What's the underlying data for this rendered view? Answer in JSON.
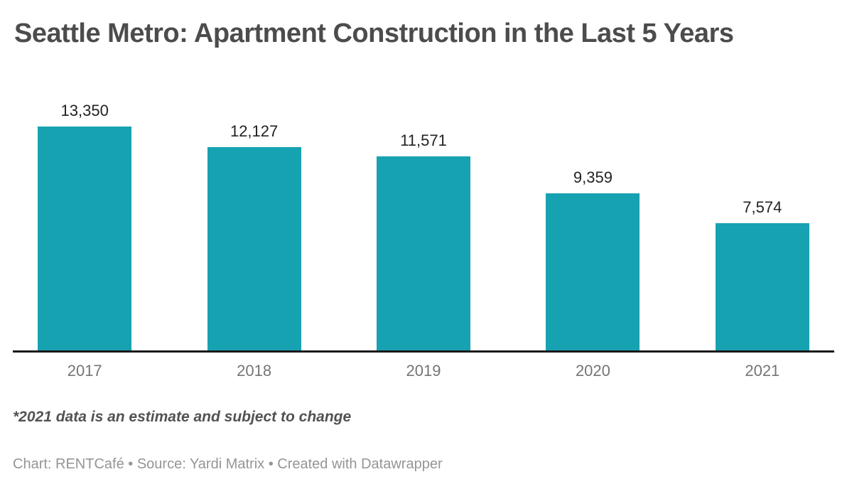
{
  "title": "Seattle Metro: Apartment Construction in the Last 5 Years",
  "note": "*2021 data is an estimate and subject to change",
  "footer": "Chart: RENTCafé • Source: Yardi Matrix • Created with Datawrapper",
  "colors": {
    "bar": "#17a2b2",
    "title_text": "#4c4c4c",
    "value_label_text": "#222222",
    "axis_label_text": "#757575",
    "baseline": "#1a1a1a",
    "note_text": "#525252",
    "footer_text": "#959595",
    "background": "#ffffff"
  },
  "chart_data": {
    "type": "bar",
    "title": "Seattle Metro: Apartment Construction in the Last 5 Years",
    "categories": [
      "2017",
      "2018",
      "2019",
      "2020",
      "2021"
    ],
    "values": [
      13350,
      12127,
      11571,
      9359,
      7574
    ],
    "value_labels": [
      "13,350",
      "12,127",
      "11,571",
      "9,359",
      "7,574"
    ],
    "xlabel": "",
    "ylabel": "",
    "ylim": [
      0,
      13900
    ],
    "grid": false,
    "legend": false,
    "legend_position": "none",
    "bar_color": "#17a2b2",
    "annotations": [
      "*2021 data is an estimate and subject to change"
    ]
  }
}
